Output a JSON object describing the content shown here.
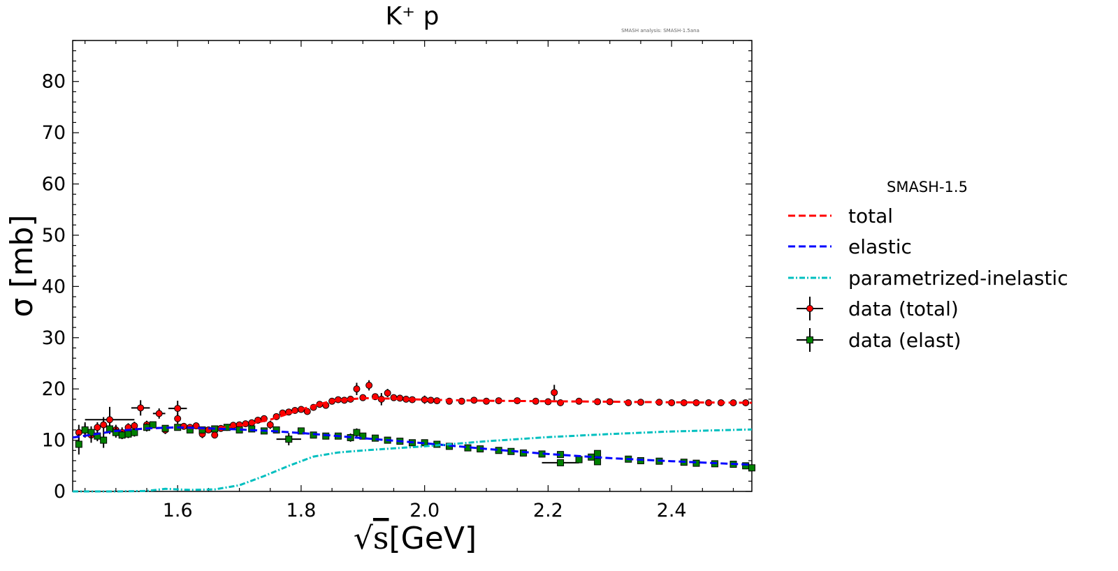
{
  "chart_data": {
    "type": "line",
    "title": "K⁺ p",
    "watermark": "SMASH analysis: SMASH-1.5ana",
    "xlabel": "√s [GeV]",
    "xlabel_radical": "√",
    "xlabel_var": "s",
    "xlabel_unit": "[GeV]",
    "ylabel": "σ [mb]",
    "xlim": [
      1.43,
      2.53
    ],
    "ylim": [
      0,
      88
    ],
    "xticks": [
      1.6,
      1.8,
      2.0,
      2.2,
      2.4
    ],
    "xtick_labels": [
      "1.6",
      "1.8",
      "2.0",
      "2.2",
      "2.4"
    ],
    "yticks": [
      0,
      10,
      20,
      30,
      40,
      50,
      60,
      70,
      80
    ],
    "ytick_labels": [
      "0",
      "10",
      "20",
      "30",
      "40",
      "50",
      "60",
      "70",
      "80"
    ],
    "grid": false,
    "legend_placement": "outside-right",
    "legend_title": "SMASH-1.5",
    "series": [
      {
        "name": "total",
        "kind": "line",
        "style": "dashed",
        "color": "#ff0000",
        "x": [
          1.43,
          1.5,
          1.55,
          1.6,
          1.65,
          1.7,
          1.75,
          1.8,
          1.85,
          1.9,
          1.95,
          2.0,
          2.1,
          2.2,
          2.3,
          2.4,
          2.53
        ],
        "y": [
          10.5,
          11.8,
          12.3,
          12.5,
          12.2,
          12.8,
          14.0,
          16.0,
          17.7,
          18.2,
          18.1,
          17.9,
          17.7,
          17.6,
          17.5,
          17.4,
          17.3
        ]
      },
      {
        "name": "elastic",
        "kind": "line",
        "style": "dashed",
        "color": "#0000ff",
        "x": [
          1.43,
          1.5,
          1.55,
          1.6,
          1.65,
          1.7,
          1.75,
          1.8,
          1.85,
          1.9,
          1.95,
          2.0,
          2.1,
          2.2,
          2.3,
          2.4,
          2.53
        ],
        "y": [
          10.5,
          11.8,
          12.3,
          12.5,
          12.3,
          12.1,
          11.8,
          11.4,
          10.9,
          10.4,
          9.9,
          9.4,
          8.3,
          7.3,
          6.5,
          5.9,
          5.2
        ]
      },
      {
        "name": "parametrized-inelastic",
        "kind": "line",
        "style": "dashdot",
        "color": "#00bfbf",
        "x": [
          1.43,
          1.5,
          1.55,
          1.58,
          1.62,
          1.66,
          1.7,
          1.74,
          1.78,
          1.82,
          1.86,
          1.9,
          1.95,
          2.0,
          2.1,
          2.2,
          2.3,
          2.4,
          2.53
        ],
        "y": [
          0,
          0,
          0.1,
          0.5,
          0.3,
          0.4,
          1.2,
          3.0,
          5.0,
          6.8,
          7.6,
          8.0,
          8.4,
          8.8,
          9.8,
          10.6,
          11.2,
          11.7,
          12.1
        ]
      },
      {
        "name": "data (total)",
        "kind": "points",
        "marker": "circle",
        "color": "#ff0000",
        "points": [
          [
            1.44,
            11.5,
            0,
            1.5
          ],
          [
            1.45,
            12.0,
            0,
            1.2
          ],
          [
            1.46,
            11.0,
            0,
            1.5
          ],
          [
            1.47,
            12.5,
            0,
            1.0
          ],
          [
            1.48,
            13.0,
            0,
            1.5
          ],
          [
            1.49,
            14.0,
            0.04,
            2.5
          ],
          [
            1.5,
            12.0,
            0,
            1.0
          ],
          [
            1.51,
            11.5,
            0,
            1.0
          ],
          [
            1.52,
            12.5,
            0,
            0.8
          ],
          [
            1.53,
            12.8,
            0,
            0.8
          ],
          [
            1.54,
            16.3,
            0.015,
            1.5
          ],
          [
            1.55,
            13.0,
            0,
            0.8
          ],
          [
            1.57,
            15.2,
            0.01,
            1.0
          ],
          [
            1.58,
            12.0,
            0,
            0.8
          ],
          [
            1.6,
            16.2,
            0.015,
            1.5
          ],
          [
            1.6,
            14.2,
            0,
            1.0
          ],
          [
            1.61,
            12.7,
            0,
            0.6
          ],
          [
            1.62,
            12.5,
            0,
            0.6
          ],
          [
            1.63,
            12.8,
            0,
            0.6
          ],
          [
            1.64,
            11.2,
            0,
            0.8
          ],
          [
            1.65,
            12.0,
            0,
            0.6
          ],
          [
            1.66,
            11.0,
            0,
            0.6
          ],
          [
            1.67,
            12.3,
            0,
            0.6
          ],
          [
            1.68,
            12.5,
            0,
            0.5
          ],
          [
            1.69,
            12.9,
            0,
            0.5
          ],
          [
            1.7,
            13.0,
            0,
            0.5
          ],
          [
            1.71,
            13.2,
            0,
            0.5
          ],
          [
            1.72,
            13.4,
            0,
            0.5
          ],
          [
            1.73,
            13.9,
            0,
            0.5
          ],
          [
            1.74,
            14.2,
            0,
            0.5
          ],
          [
            1.75,
            13.0,
            0,
            0.8
          ],
          [
            1.76,
            14.6,
            0,
            0.5
          ],
          [
            1.77,
            15.3,
            0,
            0.5
          ],
          [
            1.78,
            15.5,
            0,
            0.5
          ],
          [
            1.79,
            15.8,
            0,
            0.5
          ],
          [
            1.8,
            16.0,
            0,
            0.5
          ],
          [
            1.81,
            15.6,
            0,
            0.5
          ],
          [
            1.82,
            16.4,
            0,
            0.5
          ],
          [
            1.83,
            17.0,
            0,
            0.5
          ],
          [
            1.84,
            16.8,
            0,
            0.5
          ],
          [
            1.85,
            17.6,
            0,
            0.5
          ],
          [
            1.86,
            17.9,
            0,
            0.5
          ],
          [
            1.87,
            17.8,
            0,
            0.5
          ],
          [
            1.88,
            18.0,
            0,
            0.5
          ],
          [
            1.89,
            20.0,
            0,
            1.2
          ],
          [
            1.9,
            18.3,
            0,
            0.5
          ],
          [
            1.91,
            20.7,
            0,
            1.0
          ],
          [
            1.92,
            18.5,
            0,
            0.5
          ],
          [
            1.93,
            18.0,
            0,
            1.2
          ],
          [
            1.94,
            19.2,
            0,
            0.8
          ],
          [
            1.95,
            18.3,
            0,
            0.5
          ],
          [
            1.96,
            18.2,
            0,
            0.5
          ],
          [
            1.97,
            18.0,
            0,
            0.5
          ],
          [
            1.98,
            17.9,
            0,
            0.5
          ],
          [
            2.0,
            17.9,
            0,
            0.8
          ],
          [
            2.01,
            17.8,
            0,
            0.5
          ],
          [
            2.02,
            17.7,
            0,
            0.5
          ],
          [
            2.04,
            17.6,
            0,
            0.4
          ],
          [
            2.06,
            17.6,
            0,
            0.4
          ],
          [
            2.08,
            17.8,
            0,
            0.4
          ],
          [
            2.1,
            17.6,
            0,
            0.4
          ],
          [
            2.12,
            17.7,
            0,
            0.4
          ],
          [
            2.15,
            17.7,
            0,
            0.4
          ],
          [
            2.18,
            17.6,
            0,
            0.4
          ],
          [
            2.2,
            17.5,
            0,
            0.4
          ],
          [
            2.21,
            19.3,
            0,
            1.5
          ],
          [
            2.22,
            17.3,
            0,
            0.6
          ],
          [
            2.25,
            17.6,
            0,
            0.4
          ],
          [
            2.28,
            17.5,
            0,
            0.4
          ],
          [
            2.3,
            17.5,
            0,
            0.4
          ],
          [
            2.33,
            17.3,
            0,
            0.4
          ],
          [
            2.35,
            17.4,
            0,
            0.4
          ],
          [
            2.38,
            17.4,
            0,
            0.4
          ],
          [
            2.4,
            17.3,
            0,
            0.4
          ],
          [
            2.42,
            17.3,
            0,
            0.4
          ],
          [
            2.44,
            17.3,
            0,
            0.4
          ],
          [
            2.46,
            17.3,
            0,
            0.4
          ],
          [
            2.48,
            17.3,
            0,
            0.4
          ],
          [
            2.5,
            17.3,
            0,
            0.4
          ],
          [
            2.52,
            17.3,
            0,
            0.4
          ]
        ]
      },
      {
        "name": "data (elast)",
        "kind": "points",
        "marker": "square",
        "color": "#008000",
        "points": [
          [
            1.44,
            9.2,
            0,
            2.0
          ],
          [
            1.45,
            12.0,
            0,
            1.5
          ],
          [
            1.46,
            11.5,
            0,
            1.2
          ],
          [
            1.47,
            10.8,
            0,
            1.0
          ],
          [
            1.48,
            10.0,
            0,
            1.5
          ],
          [
            1.49,
            12.2,
            0,
            1.0
          ],
          [
            1.5,
            11.5,
            0,
            1.0
          ],
          [
            1.51,
            11.0,
            0,
            0.8
          ],
          [
            1.52,
            11.2,
            0,
            0.8
          ],
          [
            1.53,
            11.5,
            0,
            0.8
          ],
          [
            1.55,
            12.5,
            0,
            0.8
          ],
          [
            1.56,
            13.0,
            0,
            0.6
          ],
          [
            1.58,
            12.3,
            0,
            0.6
          ],
          [
            1.6,
            12.5,
            0,
            0.6
          ],
          [
            1.62,
            12.0,
            0,
            0.6
          ],
          [
            1.64,
            12.0,
            0,
            0.6
          ],
          [
            1.66,
            12.2,
            0,
            0.6
          ],
          [
            1.68,
            12.5,
            0,
            0.5
          ],
          [
            1.7,
            12.0,
            0,
            0.5
          ],
          [
            1.72,
            12.2,
            0,
            0.5
          ],
          [
            1.74,
            11.8,
            0,
            0.5
          ],
          [
            1.76,
            12.0,
            0,
            0.5
          ],
          [
            1.78,
            10.2,
            0.02,
            1.2
          ],
          [
            1.8,
            11.8,
            0,
            0.5
          ],
          [
            1.82,
            11.0,
            0,
            0.5
          ],
          [
            1.84,
            10.8,
            0,
            0.5
          ],
          [
            1.86,
            10.8,
            0,
            0.5
          ],
          [
            1.88,
            10.5,
            0,
            0.8
          ],
          [
            1.89,
            11.5,
            0,
            0.8
          ],
          [
            1.9,
            10.8,
            0,
            0.5
          ],
          [
            1.92,
            10.4,
            0,
            0.5
          ],
          [
            1.94,
            10.0,
            0,
            0.5
          ],
          [
            1.96,
            9.8,
            0,
            0.5
          ],
          [
            1.98,
            9.5,
            0,
            0.5
          ],
          [
            2.0,
            9.5,
            0,
            0.5
          ],
          [
            2.02,
            9.2,
            0,
            0.5
          ],
          [
            2.04,
            8.8,
            0,
            0.4
          ],
          [
            2.07,
            8.5,
            0,
            0.4
          ],
          [
            2.09,
            8.3,
            0,
            0.4
          ],
          [
            2.12,
            8.0,
            0,
            0.4
          ],
          [
            2.14,
            7.8,
            0,
            0.4
          ],
          [
            2.16,
            7.5,
            0,
            0.4
          ],
          [
            2.19,
            7.3,
            0,
            0.4
          ],
          [
            2.22,
            7.2,
            0,
            0.4
          ],
          [
            2.22,
            5.6,
            0.03,
            0.6
          ],
          [
            2.25,
            6.2,
            0,
            0.5
          ],
          [
            2.27,
            6.7,
            0,
            0.4
          ],
          [
            2.28,
            7.4,
            0,
            0.5
          ],
          [
            2.28,
            5.8,
            0,
            0.5
          ],
          [
            2.33,
            6.3,
            0,
            0.4
          ],
          [
            2.35,
            6.0,
            0,
            0.4
          ],
          [
            2.38,
            5.9,
            0,
            0.4
          ],
          [
            2.42,
            5.7,
            0,
            0.4
          ],
          [
            2.44,
            5.5,
            0,
            0.4
          ],
          [
            2.47,
            5.4,
            0,
            0.4
          ],
          [
            2.5,
            5.3,
            0,
            0.4
          ],
          [
            2.52,
            5.0,
            0,
            0.4
          ],
          [
            2.53,
            4.6,
            0,
            0.4
          ]
        ]
      }
    ]
  }
}
